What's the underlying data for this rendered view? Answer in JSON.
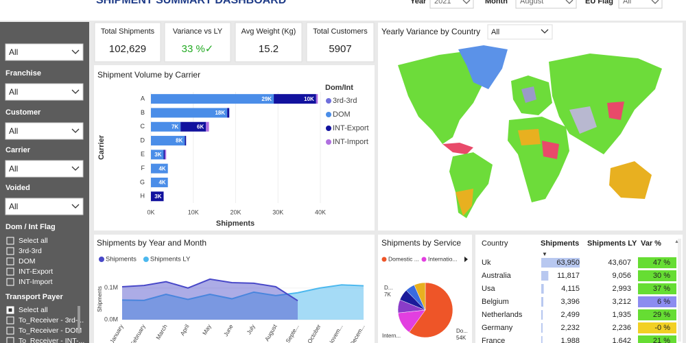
{
  "header": {
    "title": "SHIPMENT SUMMARY DASHBOARD",
    "filters": [
      {
        "label": "Year",
        "value": "2021"
      },
      {
        "label": "Month",
        "value": "August"
      },
      {
        "label": "EU Flag",
        "value": "All"
      }
    ]
  },
  "sidebar": {
    "top_dropdown": "All",
    "dropdowns": [
      {
        "label": "Franchise",
        "value": "All"
      },
      {
        "label": "Customer",
        "value": "All"
      },
      {
        "label": "Carrier",
        "value": "All"
      },
      {
        "label": "Voided",
        "value": "All"
      }
    ],
    "dom_int": {
      "label": "Dom / Int Flag",
      "options": [
        "Select all",
        "3rd-3rd",
        "DOM",
        "INT-Export",
        "INT-Import"
      ]
    },
    "transport_payer": {
      "label": "Transport Payer",
      "options": [
        "Select all",
        "To_Receiver - 3rd-...",
        "To_Receiver - DOM",
        "To_Receiver - INT-..."
      ]
    }
  },
  "kpis": [
    {
      "label": "Total Shipments",
      "value": "102,629"
    },
    {
      "label": "Variance vs LY",
      "value": "33 %✓"
    },
    {
      "label": "Avg Weight (Kg)",
      "value": "15.2"
    },
    {
      "label": "Total Customers",
      "value": "5907"
    }
  ],
  "map": {
    "title": "Yearly Variance by Country",
    "filter": "All"
  },
  "table": {
    "columns": [
      "Country",
      "Shipments",
      "Shipments LY",
      "Var %"
    ],
    "rows": [
      [
        "Uk",
        "63,950",
        "43,607",
        "47 %"
      ],
      [
        "Australia",
        "11,817",
        "9,056",
        "30 %"
      ],
      [
        "Usa",
        "4,115",
        "2,993",
        "37 %"
      ],
      [
        "Belgium",
        "3,396",
        "3,212",
        "6 %"
      ],
      [
        "Netherlands",
        "2,499",
        "1,935",
        "29 %"
      ],
      [
        "Germany",
        "2,232",
        "2,236",
        "-0 %"
      ],
      [
        "France",
        "1,988",
        "1,642",
        "21 %"
      ]
    ],
    "var_colors": [
      "#66dd33",
      "#66dd33",
      "#66dd33",
      "#8c8cf0",
      "#66dd33",
      "#f2d024",
      "#66dd33"
    ],
    "bar_color": "#b8c8f0"
  },
  "chart_data": [
    {
      "type": "bar",
      "orientation": "horizontal",
      "stacked": true,
      "title": "Shipment Volume by Carrier",
      "x_label": "Shipments",
      "y_label": "Carrier",
      "legend_title": "Dom/Int",
      "categories": [
        "A",
        "B",
        "C",
        "D",
        "E",
        "F",
        "G",
        "H"
      ],
      "series": [
        {
          "name": "3rd-3rd",
          "color": "#6f6fdc",
          "values": [
            0,
            0,
            0,
            0,
            0,
            0,
            0,
            0
          ],
          "value_labels": [
            null,
            null,
            null,
            null,
            null,
            null,
            null,
            null
          ]
        },
        {
          "name": "DOM",
          "color": "#4a8de8",
          "values": [
            29000,
            18000,
            7000,
            8000,
            3000,
            4000,
            4000,
            0
          ],
          "value_labels": [
            "29K",
            "18K",
            "7K",
            "8K",
            "3K",
            "4K",
            "4K",
            null
          ]
        },
        {
          "name": "INT-Export",
          "color": "#12129e",
          "values": [
            10000,
            500,
            6000,
            300,
            300,
            0,
            0,
            3000
          ],
          "value_labels": [
            "10K",
            null,
            "6K",
            null,
            null,
            null,
            null,
            "3K"
          ]
        },
        {
          "name": "INT-Import",
          "color": "#b070e0",
          "values": [
            400,
            0,
            700,
            0,
            300,
            0,
            0,
            0
          ],
          "value_labels": [
            null,
            null,
            null,
            null,
            null,
            null,
            null,
            null
          ]
        }
      ],
      "xlim": [
        0,
        40000
      ],
      "xticks": [
        {
          "value": 0,
          "label": "0K"
        },
        {
          "value": 10000,
          "label": "10K"
        },
        {
          "value": 20000,
          "label": "20K"
        },
        {
          "value": 30000,
          "label": "30K"
        },
        {
          "value": 40000,
          "label": "40K"
        }
      ],
      "grid": true
    },
    {
      "type": "area",
      "title": "Shipments by Year and Month",
      "y_label": "Shipments",
      "categories": [
        "January",
        "February",
        "March",
        "April",
        "May",
        "June",
        "July",
        "August",
        "Septe...",
        "October",
        "Novem...",
        "Decem..."
      ],
      "series": [
        {
          "name": "Shipments",
          "color": "#4848c8",
          "values": [
            104000,
            108000,
            120000,
            100000,
            128000,
            117000,
            115000,
            104000,
            60000,
            null,
            null,
            null
          ]
        },
        {
          "name": "Shipments LY",
          "color": "#4cb8ee",
          "values": [
            62000,
            61000,
            80000,
            64000,
            80000,
            66000,
            87000,
            76000,
            85000,
            100000,
            110000,
            107000
          ]
        }
      ],
      "ylim": [
        0,
        130000
      ],
      "yticks": [
        {
          "value": 0,
          "label": "0.0M"
        },
        {
          "value": 100000,
          "label": "0.1M"
        }
      ]
    },
    {
      "type": "pie",
      "title": "Shipments by Service",
      "categories": [
        "Domestic ...",
        "Internatio...",
        null,
        null,
        null,
        null
      ],
      "slice_labels": [
        "Do...",
        "Intern...",
        "D...",
        null,
        null,
        null
      ],
      "values": [
        54000,
        12000,
        7000,
        6000,
        5000,
        6000
      ],
      "value_labels": [
        "54K",
        null,
        "7K",
        null,
        null,
        null
      ],
      "colors": [
        "#ee5528",
        "#e23fe0",
        "#8a3cc8",
        "#1a1a9a",
        "#3a6be0",
        "#e8b020"
      ]
    }
  ]
}
